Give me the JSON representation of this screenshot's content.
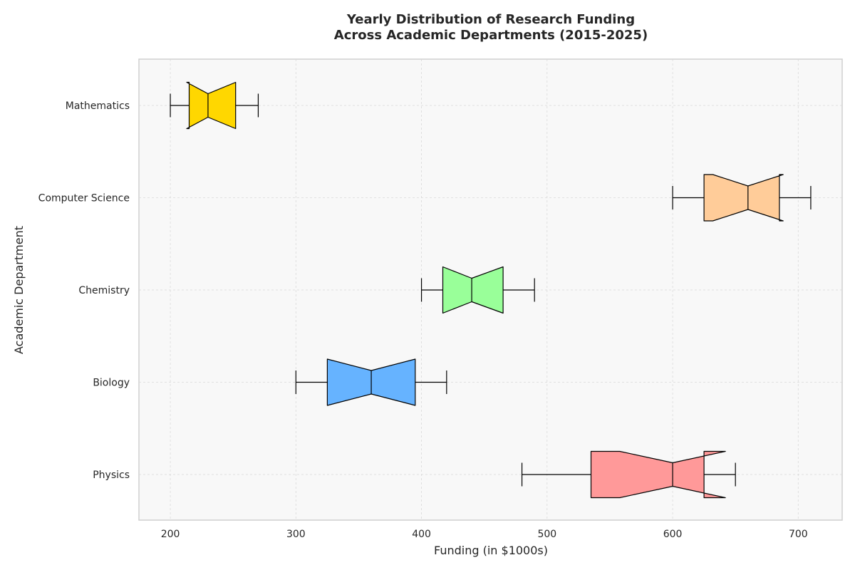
{
  "chart_data": {
    "type": "boxplot",
    "orientation": "horizontal",
    "notched": true,
    "title_lines": [
      "Yearly Distribution of Research Funding",
      "Across Academic Departments (2015-2025)"
    ],
    "xlabel": "Funding (in $1000s)",
    "ylabel": "Academic Department",
    "xlim": [
      175,
      735
    ],
    "xticks": [
      200,
      300,
      400,
      500,
      600,
      700
    ],
    "grid": true,
    "categories": [
      "Physics",
      "Biology",
      "Chemistry",
      "Computer Science",
      "Mathematics"
    ],
    "boxes": [
      {
        "category": "Physics",
        "whisker_low": 480,
        "q1": 535,
        "median": 600,
        "q3": 625,
        "whisker_high": 650,
        "notch_low": 558,
        "notch_high": 642,
        "color": "#ff9999"
      },
      {
        "category": "Biology",
        "whisker_low": 300,
        "q1": 325,
        "median": 360,
        "q3": 395,
        "whisker_high": 420,
        "notch_low": 325,
        "notch_high": 395,
        "color": "#66b3ff"
      },
      {
        "category": "Chemistry",
        "whisker_low": 400,
        "q1": 417,
        "median": 440,
        "q3": 465,
        "whisker_high": 490,
        "notch_low": 417,
        "notch_high": 465,
        "color": "#99ff99"
      },
      {
        "category": "Computer Science",
        "whisker_low": 600,
        "q1": 625,
        "median": 660,
        "q3": 685,
        "whisker_high": 710,
        "notch_low": 632,
        "notch_high": 688,
        "color": "#ffcc99"
      },
      {
        "category": "Mathematics",
        "whisker_low": 200,
        "q1": 215,
        "median": 230,
        "q3": 252,
        "whisker_high": 270,
        "notch_low": 213,
        "notch_high": 252,
        "color": "#ffd700"
      }
    ]
  }
}
